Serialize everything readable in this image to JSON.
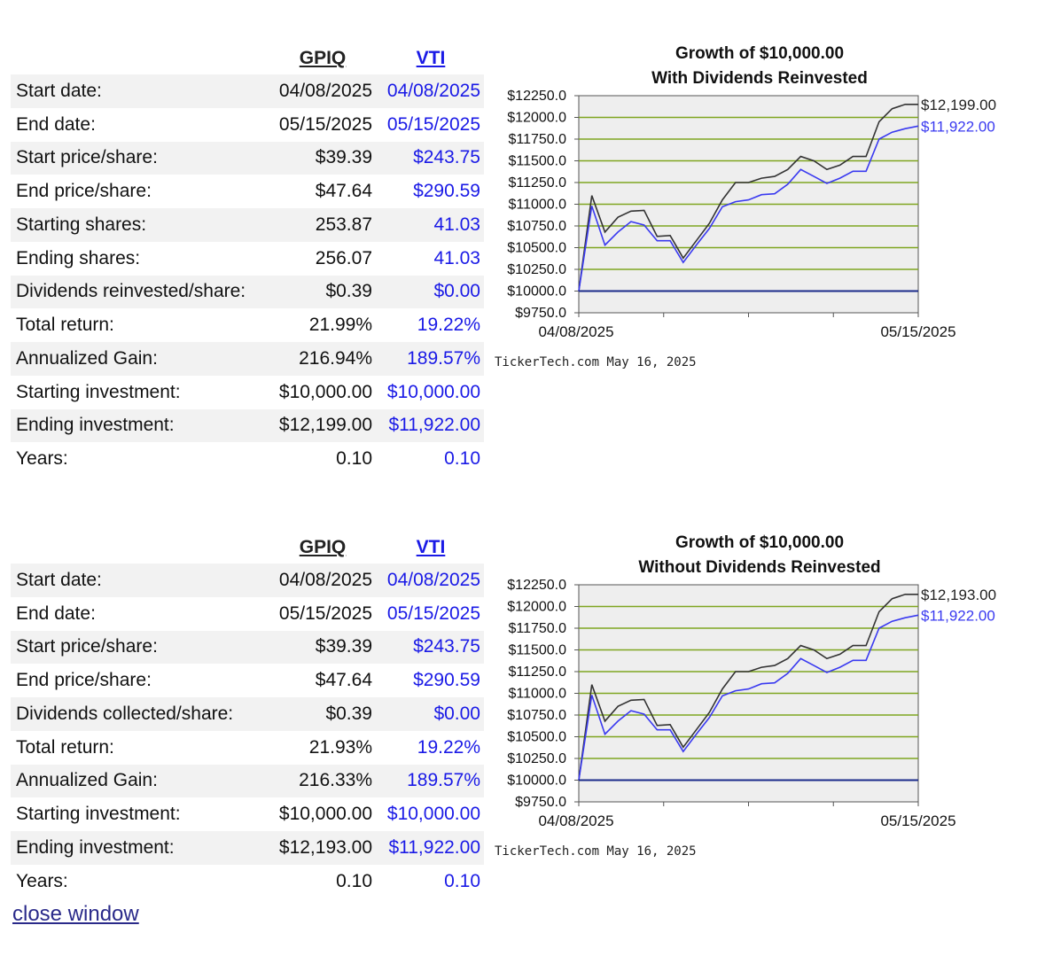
{
  "colors": {
    "gpiq": "#333333",
    "vti": "#3a3af0",
    "grid": "#7fa520",
    "plot_bg": "#eeeeee",
    "baseline": "#1a2a8a"
  },
  "sections": [
    {
      "headers": {
        "gpiq": "GPIQ",
        "vti": "VTI"
      },
      "rows": [
        {
          "label": "Start date:",
          "gpiq": "04/08/2025",
          "vti": "04/08/2025"
        },
        {
          "label": "End date:",
          "gpiq": "05/15/2025",
          "vti": "05/15/2025"
        },
        {
          "label": "Start price/share:",
          "gpiq": "$39.39",
          "vti": "$243.75"
        },
        {
          "label": "End price/share:",
          "gpiq": "$47.64",
          "vti": "$290.59"
        },
        {
          "label": "Starting shares:",
          "gpiq": "253.87",
          "vti": "41.03"
        },
        {
          "label": "Ending shares:",
          "gpiq": "256.07",
          "vti": "41.03"
        },
        {
          "label": "Dividends reinvested/share:",
          "gpiq": "$0.39",
          "vti": "$0.00"
        },
        {
          "label": "Total return:",
          "gpiq": "21.99%",
          "vti": "19.22%"
        },
        {
          "label": "Annualized Gain:",
          "gpiq": "216.94%",
          "vti": "189.57%"
        },
        {
          "label": "Starting investment:",
          "gpiq": "$10,000.00",
          "vti": "$10,000.00"
        },
        {
          "label": "Ending investment:",
          "gpiq": "$12,199.00",
          "vti": "$11,922.00"
        },
        {
          "label": "Years:",
          "gpiq": "0.10",
          "vti": "0.10"
        }
      ]
    },
    {
      "headers": {
        "gpiq": "GPIQ",
        "vti": "VTI"
      },
      "rows": [
        {
          "label": "Start date:",
          "gpiq": "04/08/2025",
          "vti": "04/08/2025"
        },
        {
          "label": "End date:",
          "gpiq": "05/15/2025",
          "vti": "05/15/2025"
        },
        {
          "label": "Start price/share:",
          "gpiq": "$39.39",
          "vti": "$243.75"
        },
        {
          "label": "End price/share:",
          "gpiq": "$47.64",
          "vti": "$290.59"
        },
        {
          "label": "Dividends collected/share:",
          "gpiq": "$0.39",
          "vti": "$0.00"
        },
        {
          "label": "Total return:",
          "gpiq": "21.93%",
          "vti": "19.22%"
        },
        {
          "label": "Annualized Gain:",
          "gpiq": "216.33%",
          "vti": "189.57%"
        },
        {
          "label": "Starting investment:",
          "gpiq": "$10,000.00",
          "vti": "$10,000.00"
        },
        {
          "label": "Ending investment:",
          "gpiq": "$12,193.00",
          "vti": "$11,922.00"
        },
        {
          "label": "Years:",
          "gpiq": "0.10",
          "vti": "0.10"
        }
      ]
    }
  ],
  "chart_data": [
    {
      "type": "line",
      "title": "Growth of $10,000.00",
      "subtitle": "With Dividends Reinvested",
      "yticks": [
        "$12250.0",
        "$12000.0",
        "$11750.0",
        "$11500.0",
        "$11250.0",
        "$11000.0",
        "$10750.0",
        "$10500.0",
        "$10250.0",
        "$10000.0",
        "$9750.0"
      ],
      "ylim": [
        9750,
        12250
      ],
      "x_labels": [
        "04/08/2025",
        "05/15/2025"
      ],
      "credit": "TickerTech.com  May 16, 2025",
      "end_labels": [
        "$12,199.00",
        "$11,922.00"
      ],
      "series": [
        {
          "name": "GPIQ",
          "values": [
            10000,
            11100,
            10680,
            10850,
            10920,
            10930,
            10630,
            10640,
            10380,
            10580,
            10780,
            11050,
            11250,
            11250,
            11300,
            11320,
            11400,
            11550,
            11500,
            11400,
            11450,
            11550,
            11550,
            11950,
            12100,
            12150,
            12150
          ]
        },
        {
          "name": "VTI",
          "values": [
            10000,
            10980,
            10530,
            10680,
            10800,
            10760,
            10580,
            10580,
            10330,
            10530,
            10720,
            10970,
            11030,
            11050,
            11110,
            11120,
            11230,
            11400,
            11320,
            11240,
            11300,
            11380,
            11380,
            11750,
            11830,
            11870,
            11900
          ]
        },
        {
          "name": "Baseline",
          "values": [
            10000,
            10000
          ]
        }
      ]
    },
    {
      "type": "line",
      "title": "Growth of $10,000.00",
      "subtitle": "Without Dividends Reinvested",
      "yticks": [
        "$12250.0",
        "$12000.0",
        "$11750.0",
        "$11500.0",
        "$11250.0",
        "$11000.0",
        "$10750.0",
        "$10500.0",
        "$10250.0",
        "$10000.0",
        "$9750.0"
      ],
      "ylim": [
        9750,
        12250
      ],
      "x_labels": [
        "04/08/2025",
        "05/15/2025"
      ],
      "credit": "TickerTech.com  May 16, 2025",
      "end_labels": [
        "$12,193.00",
        "$11,922.00"
      ],
      "series": [
        {
          "name": "GPIQ",
          "values": [
            10000,
            11100,
            10680,
            10850,
            10920,
            10930,
            10630,
            10640,
            10380,
            10580,
            10780,
            11050,
            11250,
            11250,
            11300,
            11320,
            11400,
            11550,
            11500,
            11400,
            11450,
            11550,
            11550,
            11940,
            12090,
            12140,
            12140
          ]
        },
        {
          "name": "VTI",
          "values": [
            10000,
            10980,
            10530,
            10680,
            10800,
            10760,
            10580,
            10580,
            10330,
            10530,
            10720,
            10970,
            11030,
            11050,
            11110,
            11120,
            11230,
            11400,
            11320,
            11240,
            11300,
            11380,
            11380,
            11750,
            11830,
            11870,
            11900
          ]
        },
        {
          "name": "Baseline",
          "values": [
            10000,
            10000
          ]
        }
      ]
    }
  ],
  "footer": {
    "close_label": "close window"
  }
}
